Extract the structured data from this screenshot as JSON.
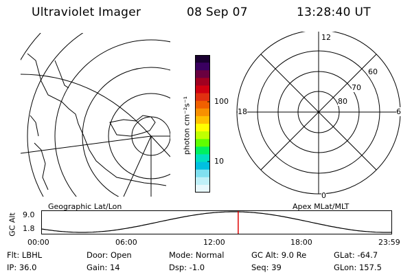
{
  "header": {
    "title": "Ultraviolet Imager",
    "date": "08 Sep 07",
    "time": "13:28:40 UT"
  },
  "left_panel": {
    "label": "Geographic Lat/Lon"
  },
  "right_panel": {
    "label": "Apex MLat/MLT",
    "mlt_labels": {
      "top": "12",
      "left": "18",
      "right": "6",
      "bottom": "0"
    },
    "lat_labels": [
      "60",
      "70",
      "80"
    ]
  },
  "colorbar": {
    "unit": "photon cm⁻²s⁻¹",
    "tick_labels": [
      "100",
      "10"
    ],
    "colors": [
      "#1a0030",
      "#3a0060",
      "#6a0040",
      "#a00020",
      "#d00010",
      "#e03010",
      "#f06000",
      "#f89000",
      "#ffc000",
      "#ffff00",
      "#c0ff00",
      "#60ff00",
      "#00f060",
      "#00e0c0",
      "#00c0e0",
      "#80e0f0",
      "#c0f0f8",
      "#e8f8fc"
    ]
  },
  "timeline": {
    "ylabel": "GC Alt",
    "y_ticks": [
      "9.0",
      "1.8"
    ],
    "x_ticks": [
      "00:00",
      "06:00",
      "12:00",
      "18:00",
      "23:59"
    ],
    "current_hour": 13.48,
    "line_color": "#e00000"
  },
  "info": {
    "row1": {
      "flt": "Flt: LBHL",
      "door": "Door: Open",
      "mode": "Mode: Normal",
      "gcalt": "GC Alt: 9.0 Re",
      "glat": "GLat: -64.7"
    },
    "row2": {
      "ip": "IP: 36.0",
      "gain": "Gain: 14",
      "dsp": "Dsp:   -1.0",
      "seq": "Seq: 39",
      "glon": "GLon: 157.5"
    }
  }
}
